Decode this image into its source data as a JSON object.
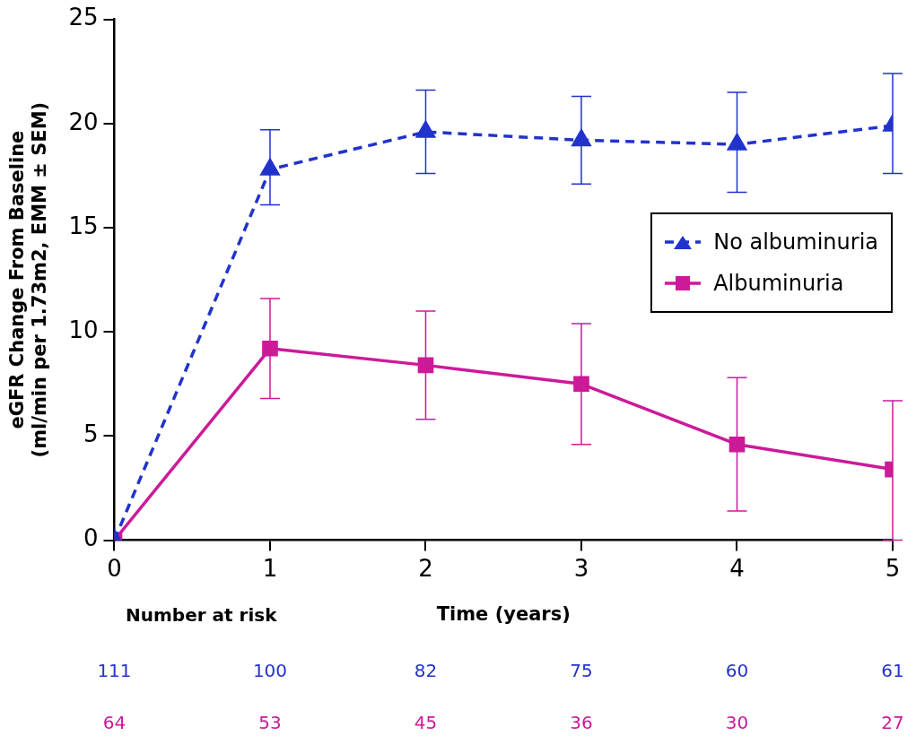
{
  "chart_data": {
    "type": "line",
    "xlabel": "Time (years)",
    "ylabel": "eGFR Change From Baseline\n(ml/min per 1.73m2, EMM ± SEM)",
    "x": [
      0,
      1,
      2,
      3,
      4,
      5
    ],
    "series": [
      {
        "name": "No albuminuria",
        "color": "#2233cc",
        "marker": "triangle",
        "line_style": "dashed",
        "values": [
          0,
          17.8,
          19.6,
          19.2,
          19.0,
          19.9
        ],
        "errors": [
          null,
          [
            16.1,
            19.7
          ],
          [
            17.6,
            21.6
          ],
          [
            17.1,
            21.3
          ],
          [
            16.7,
            21.5
          ],
          [
            17.6,
            22.4
          ]
        ]
      },
      {
        "name": "Albuminuria",
        "color": "#cc1a99",
        "marker": "square",
        "line_style": "solid",
        "values": [
          0,
          9.2,
          8.4,
          7.5,
          4.6,
          3.4
        ],
        "errors": [
          null,
          [
            6.8,
            11.6
          ],
          [
            5.8,
            11.0
          ],
          [
            4.6,
            10.4
          ],
          [
            1.4,
            7.8
          ],
          [
            0.0,
            6.7
          ]
        ]
      }
    ],
    "xlim": [
      0,
      5
    ],
    "xticks": [
      0,
      1,
      2,
      3,
      4,
      5
    ],
    "ylim": [
      0,
      25
    ],
    "yticks": [
      0,
      5,
      10,
      15,
      20,
      25
    ],
    "grid": false,
    "legend": "right",
    "annotations": [
      "Number at risk",
      "111",
      "100",
      "82",
      "75",
      "60",
      "61",
      "64",
      "53",
      "45",
      "36",
      "30",
      "27"
    ]
  }
}
